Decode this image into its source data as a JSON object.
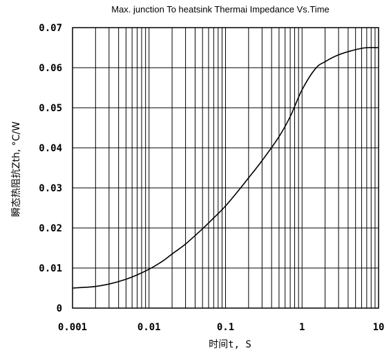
{
  "chart_data": {
    "type": "line",
    "title": "Max. junction To heatsink Thermai Impedance Vs.Time",
    "xlabel": "时间t, S",
    "ylabel": "瞬态热阻抗Zth, °C/W",
    "xscale": "log",
    "xlim": [
      0.001,
      10
    ],
    "ylim": [
      0,
      0.07
    ],
    "grid": true,
    "x_ticks": [
      0.001,
      0.01,
      0.1,
      1,
      10
    ],
    "x_tick_labels": [
      "0.001",
      "0.01",
      "0.1",
      "1",
      "10"
    ],
    "y_ticks": [
      0,
      0.01,
      0.02,
      0.03,
      0.04,
      0.05,
      0.06,
      0.07
    ],
    "y_tick_labels": [
      "0",
      "0.01",
      "0.02",
      "0.03",
      "0.04",
      "0.05",
      "0.06",
      "0.07"
    ],
    "series": [
      {
        "color": "#000000",
        "x": [
          0.001,
          0.0015,
          0.002,
          0.003,
          0.005,
          0.007,
          0.01,
          0.015,
          0.02,
          0.03,
          0.05,
          0.07,
          0.1,
          0.15,
          0.2,
          0.3,
          0.5,
          0.7,
          1,
          1.5,
          2,
          3,
          5,
          7,
          10
        ],
        "y": [
          0.005,
          0.0052,
          0.0054,
          0.006,
          0.0072,
          0.0083,
          0.0097,
          0.0117,
          0.0135,
          0.016,
          0.0198,
          0.0225,
          0.0255,
          0.0295,
          0.0325,
          0.0368,
          0.0428,
          0.0478,
          0.0545,
          0.0598,
          0.0615,
          0.0632,
          0.0645,
          0.065,
          0.065
        ]
      }
    ]
  }
}
